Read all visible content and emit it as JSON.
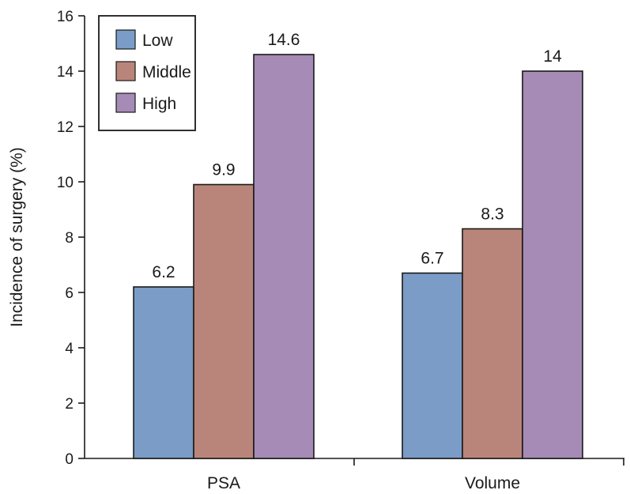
{
  "chart_data": {
    "type": "bar",
    "categories": [
      "PSA",
      "Volume"
    ],
    "series": [
      {
        "name": "Low",
        "values": [
          6.2,
          6.7
        ],
        "color": "#7a9cc6"
      },
      {
        "name": "Middle",
        "values": [
          9.9,
          8.3
        ],
        "color": "#b9857a"
      },
      {
        "name": "High",
        "values": [
          14.6,
          14
        ],
        "color": "#a58bb6"
      }
    ],
    "data_labels": [
      [
        "6.2",
        "9.9",
        "14.6"
      ],
      [
        "6.7",
        "8.3",
        "14"
      ]
    ],
    "title": "",
    "xlabel": "",
    "ylabel": "Incidence of surgery (%)",
    "ylim": [
      0,
      16
    ],
    "yticks": [
      0,
      2,
      4,
      6,
      8,
      10,
      12,
      14,
      16
    ],
    "grid": false,
    "legend_position": "top-left"
  }
}
